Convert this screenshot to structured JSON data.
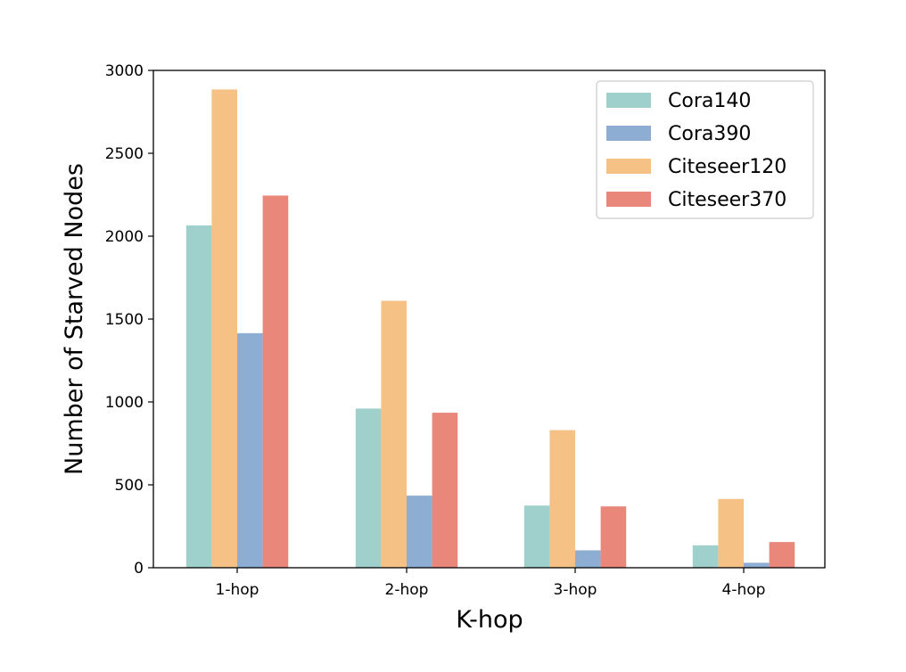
{
  "chart_data": {
    "type": "bar",
    "title": "",
    "xlabel": "K-hop",
    "ylabel": "Number of Starved Nodes",
    "categories": [
      "1-hop",
      "2-hop",
      "3-hop",
      "4-hop"
    ],
    "ylim": [
      0,
      3000
    ],
    "yticks": [
      0,
      500,
      1000,
      1500,
      2000,
      2500,
      3000
    ],
    "grid": false,
    "legend_position": "top-right",
    "series": [
      {
        "name": "Cora140",
        "color": "#9FD0CB",
        "values": [
          2065,
          960,
          375,
          135
        ]
      },
      {
        "name": "Cora390",
        "color": "#8EADD2",
        "values": [
          1415,
          435,
          105,
          30
        ]
      },
      {
        "name": "Citeseer120",
        "color": "#F5C185",
        "values": [
          2885,
          1610,
          830,
          415
        ]
      },
      {
        "name": "Citeseer370",
        "color": "#E8877A",
        "values": [
          2245,
          935,
          370,
          155
        ]
      }
    ]
  }
}
